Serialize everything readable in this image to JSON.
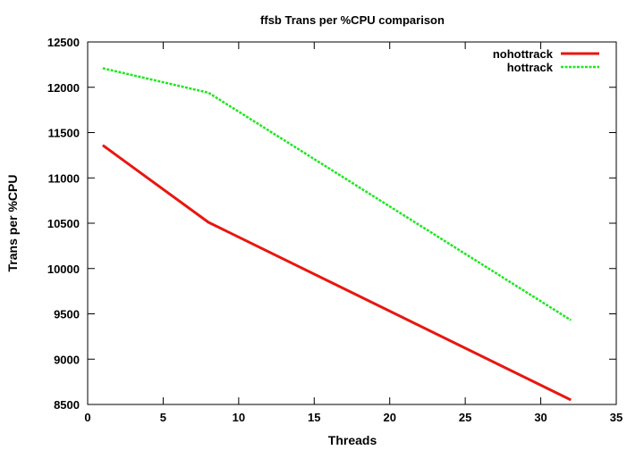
{
  "chart_data": {
    "type": "line",
    "title": "ffsb Trans per %CPU comparison",
    "xlabel": "Threads",
    "ylabel": "Trans per %CPU",
    "xlim": [
      0,
      35
    ],
    "ylim": [
      8500,
      12500
    ],
    "xticks": [
      0,
      5,
      10,
      15,
      20,
      25,
      30,
      35
    ],
    "yticks": [
      8500,
      9000,
      9500,
      10000,
      10500,
      11000,
      11500,
      12000,
      12500
    ],
    "grid": false,
    "legend_position": "top-right",
    "series": [
      {
        "name": "nohottrack",
        "color": "#e8170f",
        "style": "solid",
        "x": [
          1,
          8,
          32
        ],
        "y": [
          11360,
          10510,
          8550
        ]
      },
      {
        "name": "hottrack",
        "color": "#1ee81e",
        "style": "dashed",
        "x": [
          1,
          8,
          32
        ],
        "y": [
          12210,
          11940,
          9430
        ]
      }
    ]
  }
}
